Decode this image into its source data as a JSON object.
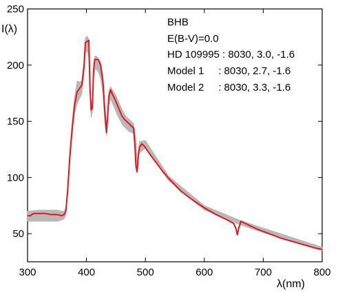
{
  "chart_data": {
    "type": "line",
    "title": "",
    "xlabel": "λ(nm)",
    "ylabel": "I(λ)",
    "xlim": [
      300,
      800
    ],
    "ylim": [
      25,
      250
    ],
    "xticks": [
      300,
      400,
      500,
      600,
      700,
      800
    ],
    "yticks": [
      50,
      100,
      150,
      200,
      250
    ],
    "grid": false,
    "legend_position": "top-right",
    "annotations": [
      "BHB",
      "E(B-V)=0.0",
      "HD 109995 : 8030, 3.0, -1.6",
      "Model 1     : 8030, 2.7, -1.6",
      "Model 2     : 8030, 3.3, -1.6"
    ],
    "colors": {
      "observed": "#e8141b",
      "model_band": "#b8b8b8"
    },
    "series": [
      {
        "x": [
          300,
          305,
          310,
          320,
          330,
          340,
          350,
          358,
          362,
          365,
          368,
          372,
          376,
          380,
          384,
          388,
          392,
          396,
          398,
          401,
          404,
          406,
          408,
          410,
          412,
          414,
          417,
          420,
          424,
          428,
          431,
          434,
          436,
          438,
          441,
          444,
          448,
          452,
          456,
          460,
          464,
          468,
          472,
          476,
          480,
          482,
          484,
          486,
          488,
          490,
          494,
          498,
          502,
          510,
          520,
          530,
          540,
          560,
          580,
          600,
          620,
          640,
          650,
          654,
          656,
          658,
          662,
          670,
          690,
          710,
          730,
          750,
          770,
          790,
          800
        ],
        "y": [
          66,
          66,
          68,
          68,
          68,
          67,
          67,
          66,
          67,
          70,
          88,
          120,
          145,
          165,
          176,
          179,
          182,
          200,
          220,
          221,
          222,
          180,
          160,
          162,
          195,
          205,
          205,
          205,
          200,
          185,
          160,
          140,
          155,
          172,
          178,
          174,
          170,
          165,
          160,
          155,
          152,
          150,
          148,
          146,
          144,
          130,
          110,
          105,
          120,
          127,
          130,
          128,
          125,
          119,
          112,
          105,
          99,
          88,
          80,
          73,
          67,
          62,
          59,
          54,
          49,
          54,
          61,
          59,
          54,
          50,
          46,
          43,
          40,
          37,
          36
        ]
      }
    ],
    "model_band": {
      "x": [
        300,
        320,
        340,
        350,
        358,
        362,
        365,
        368,
        372,
        376,
        380,
        384,
        388,
        392,
        396,
        398,
        401,
        404,
        406,
        408,
        410,
        412,
        414,
        417,
        420,
        424,
        428,
        431,
        434,
        436,
        438,
        441,
        444,
        448,
        452,
        456,
        460,
        464,
        468,
        472,
        476,
        480,
        484,
        486,
        490,
        500,
        540,
        600,
        660,
        700,
        800
      ],
      "y_low": [
        61,
        61,
        61,
        61,
        62,
        63,
        66,
        84,
        114,
        140,
        158,
        165,
        170,
        174,
        192,
        210,
        213,
        206,
        175,
        153,
        158,
        188,
        196,
        196,
        194,
        188,
        174,
        148,
        137,
        150,
        164,
        170,
        166,
        161,
        156,
        152,
        148,
        145,
        143,
        141,
        140,
        139,
        120,
        108,
        122,
        126,
        97,
        71,
        58,
        51,
        35
      ],
      "y_high": [
        70,
        71,
        71,
        71,
        70,
        70,
        73,
        92,
        126,
        152,
        172,
        186,
        185,
        186,
        204,
        224,
        226,
        223,
        186,
        167,
        169,
        200,
        208,
        208,
        206,
        203,
        190,
        166,
        146,
        160,
        177,
        181,
        178,
        175,
        171,
        166,
        161,
        157,
        154,
        152,
        150,
        148,
        135,
        112,
        132,
        133,
        101,
        75,
        62,
        55,
        38
      ]
    }
  }
}
